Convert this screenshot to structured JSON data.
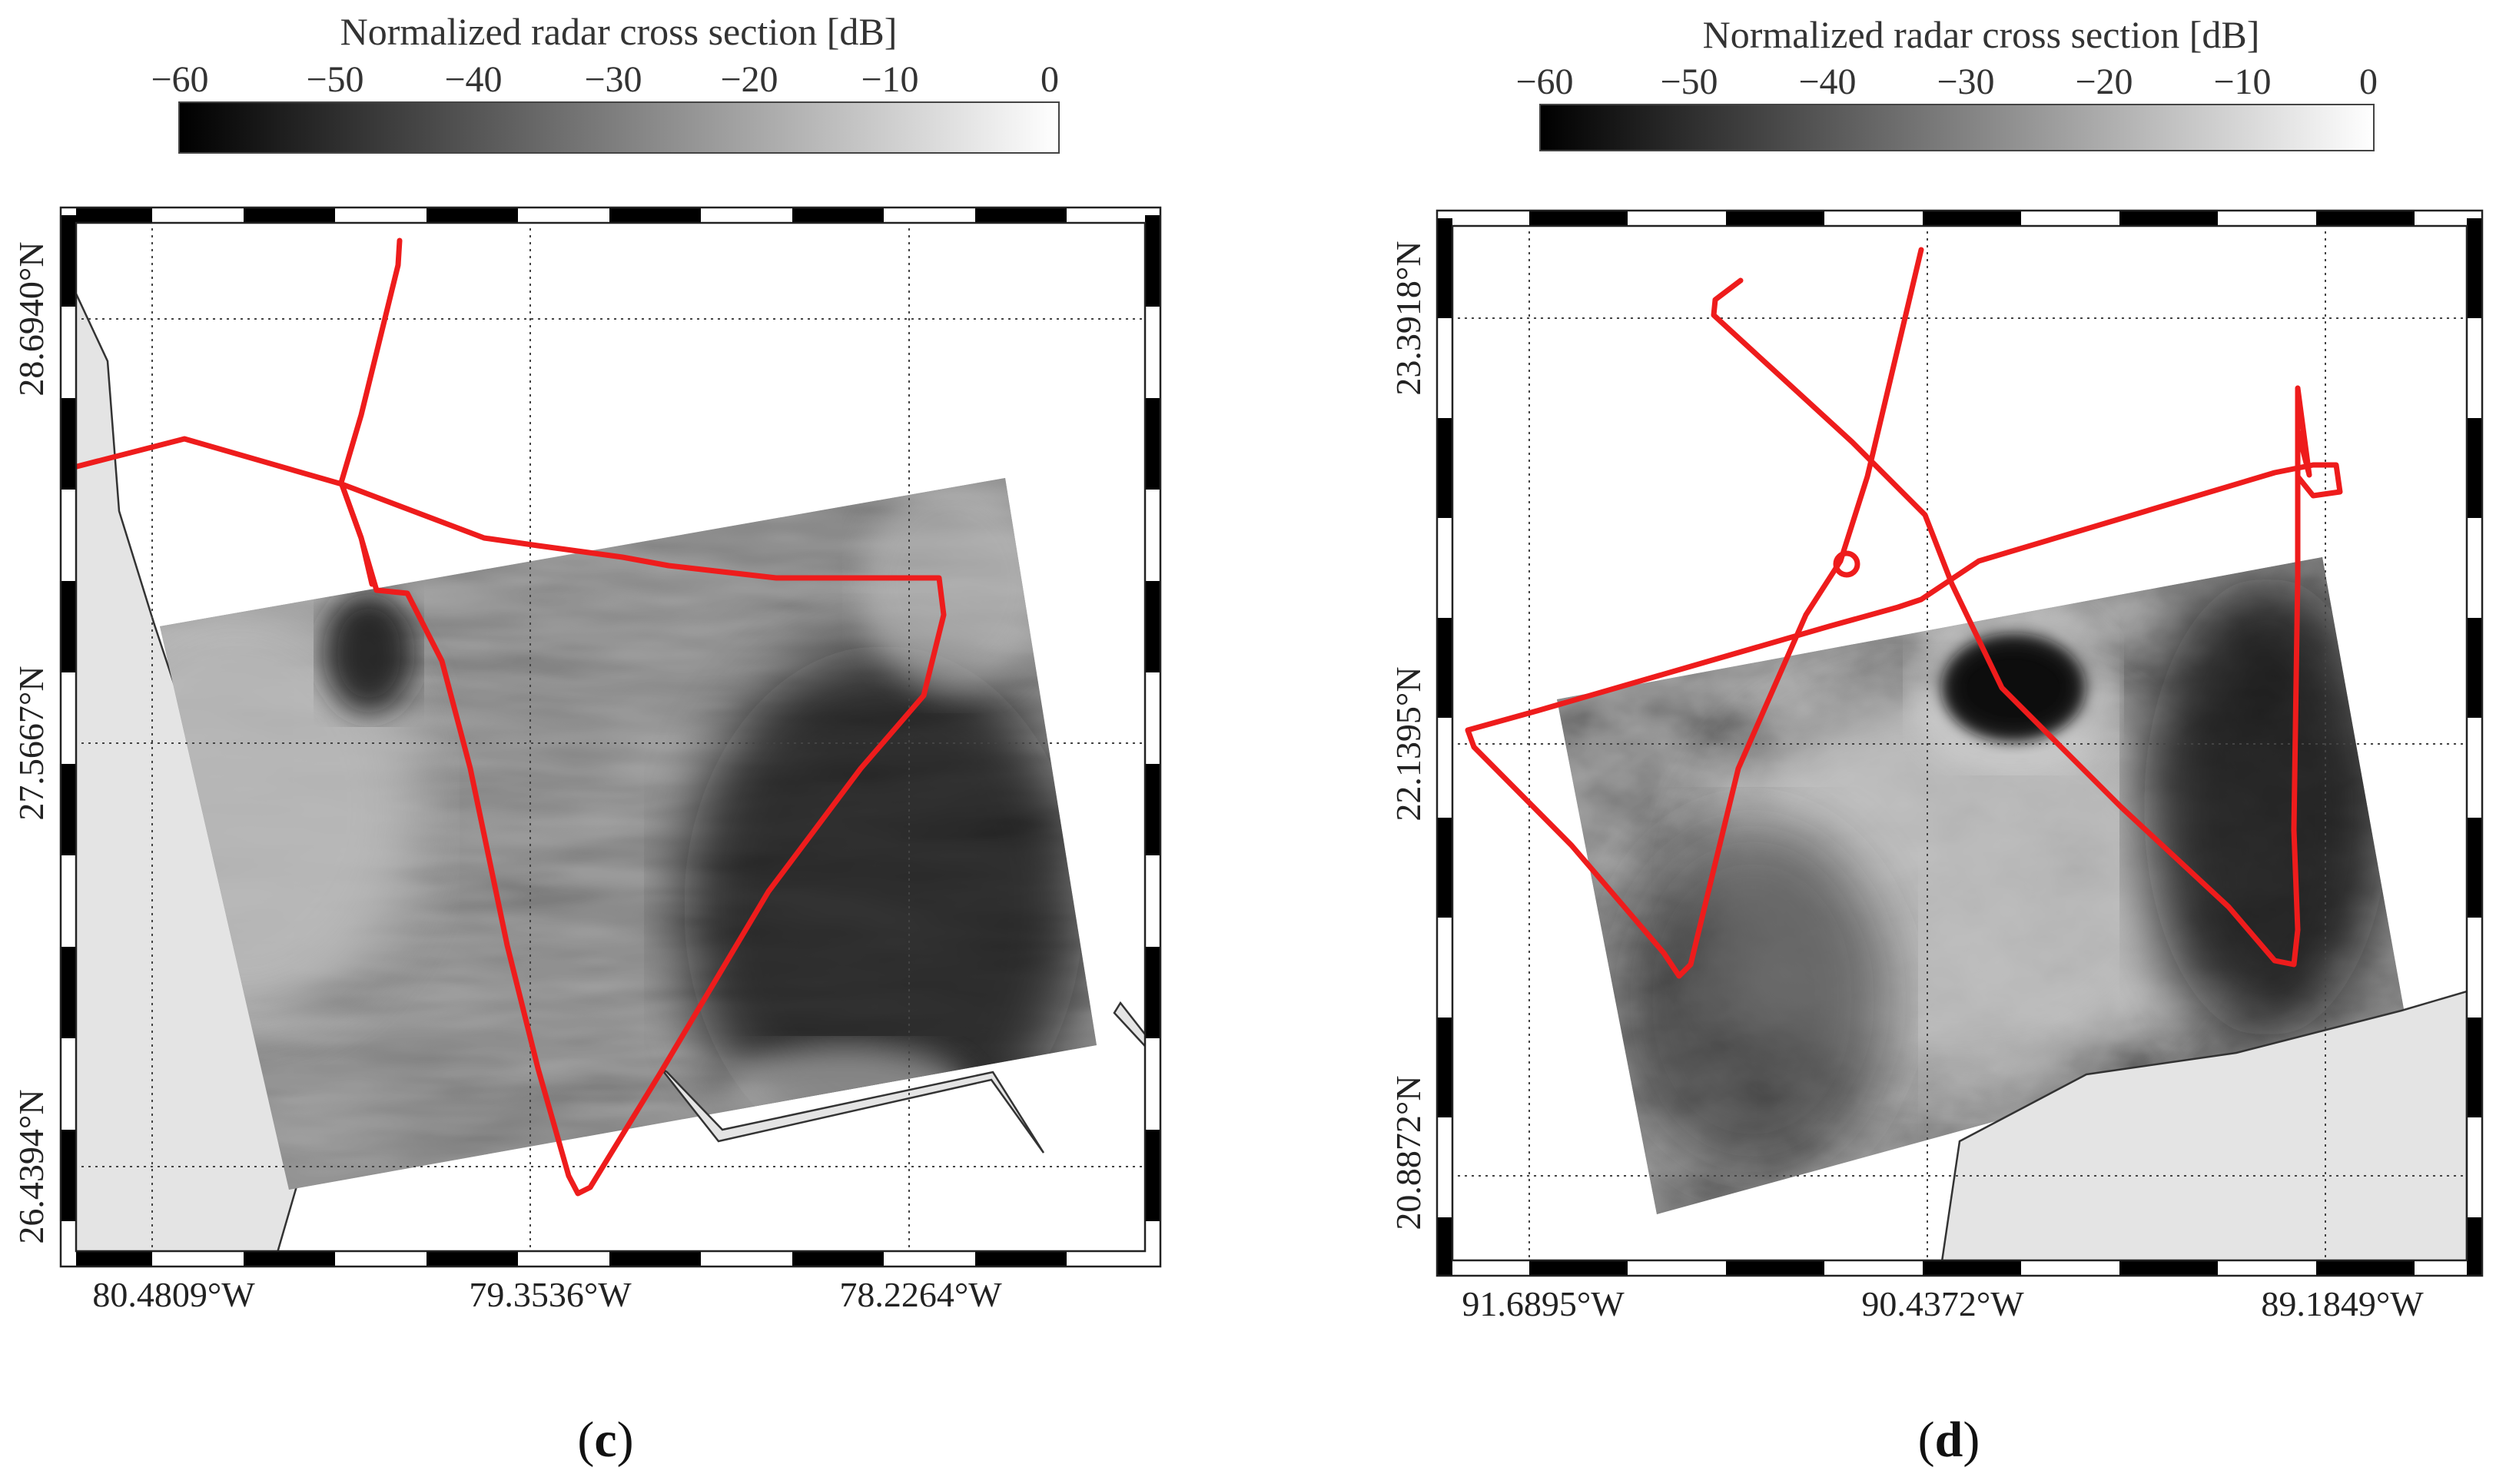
{
  "panels": [
    {
      "id": "c",
      "label_open": "(",
      "label_letter": "c",
      "label_close": ")",
      "colorbar": {
        "title": "Normalized radar cross section [dB]",
        "ticks": [
          "−60",
          "−50",
          "−40",
          "−30",
          "−20",
          "−10",
          "0"
        ],
        "range": [
          -60,
          0
        ],
        "colormap": "gray"
      },
      "latitudes": [
        "28.6940°N",
        "27.5667°N",
        "26.4394°N"
      ],
      "longitudes": [
        "80.4809°W",
        "79.3536°W",
        "78.2264°W"
      ],
      "track_color": "#ee1c1c"
    },
    {
      "id": "d",
      "label_open": "(",
      "label_letter": "d",
      "label_close": ")",
      "colorbar": {
        "title": "Normalized radar cross section [dB]",
        "ticks": [
          "−60",
          "−50",
          "−40",
          "−30",
          "−20",
          "−10",
          "0"
        ],
        "range": [
          -60,
          0
        ],
        "colormap": "gray"
      },
      "latitudes": [
        "23.3918°N",
        "22.1395°N",
        "20.8872°N"
      ],
      "longitudes": [
        "91.6895°W",
        "90.4372°W",
        "89.1849°W"
      ],
      "track_color": "#ee1c1c"
    }
  ]
}
